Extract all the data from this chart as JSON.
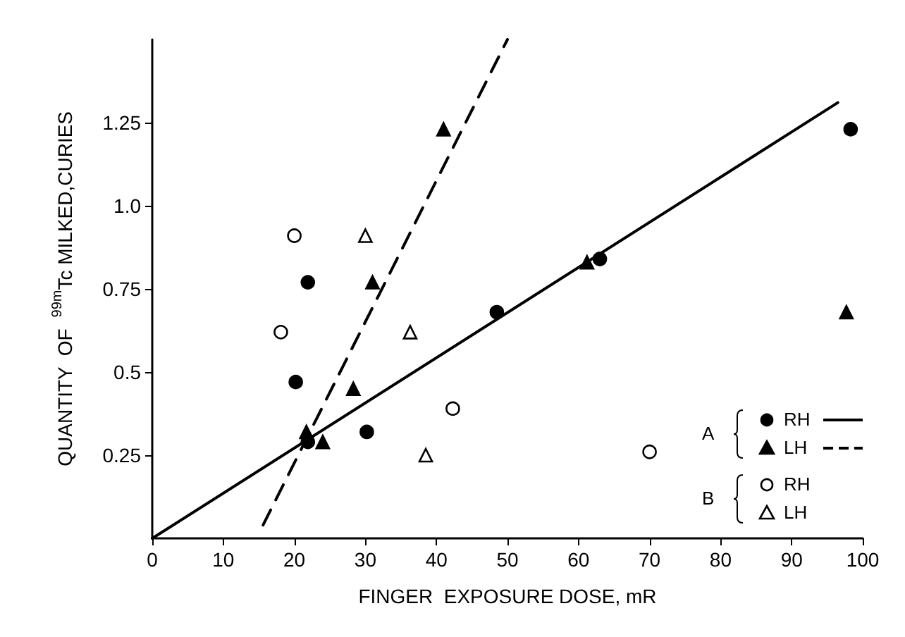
{
  "chart_data": {
    "type": "scatter",
    "xlabel": "FINGER  EXPOSURE DOSE, mR",
    "ylabel": "QUANTITY  OF  $^{99m}$Tc MILKED,CURIES",
    "xlim": [
      0,
      100
    ],
    "xticks": [
      0,
      10,
      20,
      30,
      40,
      50,
      60,
      70,
      80,
      90,
      100
    ],
    "ylim": [
      0,
      1.5
    ],
    "yticks": [
      0.25,
      0.5,
      0.75,
      {
        "value": 1.0,
        "label": "1.0"
      },
      1.25
    ],
    "grid": false,
    "legend": "right",
    "annotations": [
      "A",
      "B"
    ],
    "series": [
      {
        "name": "RH",
        "color": "#000000",
        "marker": "circle",
        "x": [
          21.9,
          20.2,
          21.9,
          30.2,
          48.5,
          63,
          98.3
        ],
        "values": [
          0.77,
          0.47,
          0.29,
          0.32,
          0.68,
          0.84,
          1.23
        ]
      },
      {
        "name": "LH",
        "color": "#000000",
        "marker": "triangle",
        "x": [
          41,
          31,
          28.3,
          21.7,
          24,
          61.2,
          97.7
        ],
        "values": [
          1.23,
          0.77,
          0.45,
          0.32,
          0.29,
          0.83,
          0.68
        ]
      },
      {
        "name": "RH",
        "color": "#ffffff",
        "marker": "circle",
        "x": [
          20,
          18.1,
          42.3,
          70
        ],
        "values": [
          0.91,
          0.62,
          0.39,
          0.26
        ]
      },
      {
        "name": "LH",
        "color": "#ffffff",
        "marker": "triangle",
        "x": [
          30,
          36.3,
          38.5
        ],
        "values": [
          0.91,
          0.62,
          0.25
        ]
      },
      {
        "type": "line",
        "color": "#000000",
        "marker": "none",
        "line_style": "solid",
        "x": [
          0,
          96.5
        ],
        "values": [
          0,
          1.31
        ]
      },
      {
        "type": "line",
        "color": "#000000",
        "marker": "none",
        "line_style": "dashed",
        "x": [
          15.6,
          50
        ],
        "values": [
          0.04,
          1.5
        ]
      }
    ]
  }
}
